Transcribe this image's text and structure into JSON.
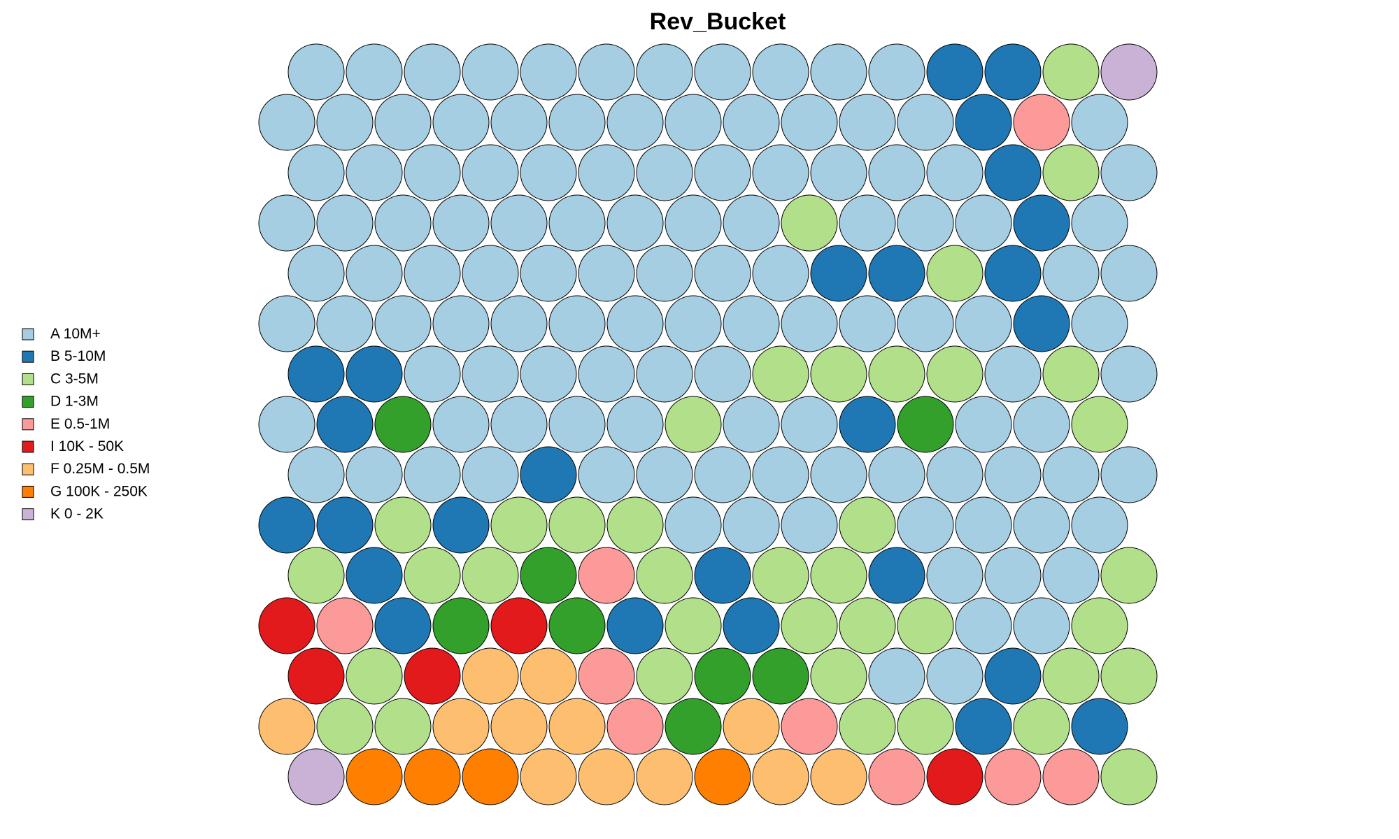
{
  "chart_data": {
    "type": "heatmap",
    "title": "Rev_Bucket",
    "legend_position": "left",
    "legend": [
      {
        "code": "A",
        "label": "A 10M+",
        "color": "#A6CEE3"
      },
      {
        "code": "B",
        "label": "B 5-10M",
        "color": "#1F78B4"
      },
      {
        "code": "C",
        "label": "C 3-5M",
        "color": "#B2DF8A"
      },
      {
        "code": "D",
        "label": "D 1-3M",
        "color": "#33A02C"
      },
      {
        "code": "E",
        "label": "E 0.5-1M",
        "color": "#FB9A99"
      },
      {
        "code": "I",
        "label": "I 10K - 50K",
        "color": "#E31A1C"
      },
      {
        "code": "F",
        "label": "F 0.25M - 0.5M",
        "color": "#FDBF6F"
      },
      {
        "code": "G",
        "label": "G 100K - 250K",
        "color": "#FF7F00"
      },
      {
        "code": "K",
        "label": "K 0 - 2K",
        "color": "#CAB2D6"
      }
    ],
    "grid": {
      "rows": 15,
      "cols": 15,
      "cells": [
        [
          "A",
          "A",
          "A",
          "A",
          "A",
          "A",
          "A",
          "A",
          "A",
          "A",
          "A",
          "B",
          "B",
          "C",
          "K"
        ],
        [
          "A",
          "A",
          "A",
          "A",
          "A",
          "A",
          "A",
          "A",
          "A",
          "A",
          "A",
          "A",
          "B",
          "E",
          "A"
        ],
        [
          "A",
          "A",
          "A",
          "A",
          "A",
          "A",
          "A",
          "A",
          "A",
          "A",
          "A",
          "A",
          "B",
          "C",
          "A"
        ],
        [
          "A",
          "A",
          "A",
          "A",
          "A",
          "A",
          "A",
          "A",
          "A",
          "C",
          "A",
          "A",
          "A",
          "B",
          "A"
        ],
        [
          "A",
          "A",
          "A",
          "A",
          "A",
          "A",
          "A",
          "A",
          "A",
          "B",
          "B",
          "C",
          "B",
          "A",
          "A"
        ],
        [
          "A",
          "A",
          "A",
          "A",
          "A",
          "A",
          "A",
          "A",
          "A",
          "A",
          "A",
          "A",
          "A",
          "B",
          "A"
        ],
        [
          "B",
          "B",
          "A",
          "A",
          "A",
          "A",
          "A",
          "A",
          "C",
          "C",
          "C",
          "C",
          "A",
          "C",
          "A"
        ],
        [
          "A",
          "B",
          "D",
          "A",
          "A",
          "A",
          "A",
          "C",
          "A",
          "A",
          "B",
          "D",
          "A",
          "A",
          "C"
        ],
        [
          "A",
          "A",
          "A",
          "A",
          "B",
          "A",
          "A",
          "A",
          "A",
          "A",
          "A",
          "A",
          "A",
          "A",
          "A"
        ],
        [
          "B",
          "B",
          "C",
          "B",
          "C",
          "C",
          "C",
          "A",
          "A",
          "A",
          "C",
          "A",
          "A",
          "A",
          "A"
        ],
        [
          "C",
          "B",
          "C",
          "C",
          "D",
          "E",
          "C",
          "B",
          "C",
          "C",
          "B",
          "A",
          "A",
          "A",
          "C"
        ],
        [
          "I",
          "E",
          "B",
          "D",
          "I",
          "D",
          "B",
          "C",
          "B",
          "C",
          "C",
          "C",
          "A",
          "A",
          "C"
        ],
        [
          "I",
          "C",
          "I",
          "F",
          "F",
          "E",
          "C",
          "D",
          "D",
          "C",
          "A",
          "A",
          "B",
          "C",
          "C"
        ],
        [
          "F",
          "C",
          "C",
          "F",
          "F",
          "F",
          "E",
          "D",
          "F",
          "E",
          "C",
          "C",
          "B",
          "C",
          "B"
        ],
        [
          "K",
          "G",
          "G",
          "G",
          "F",
          "F",
          "F",
          "G",
          "F",
          "F",
          "E",
          "I",
          "E",
          "E",
          "C"
        ]
      ]
    }
  }
}
